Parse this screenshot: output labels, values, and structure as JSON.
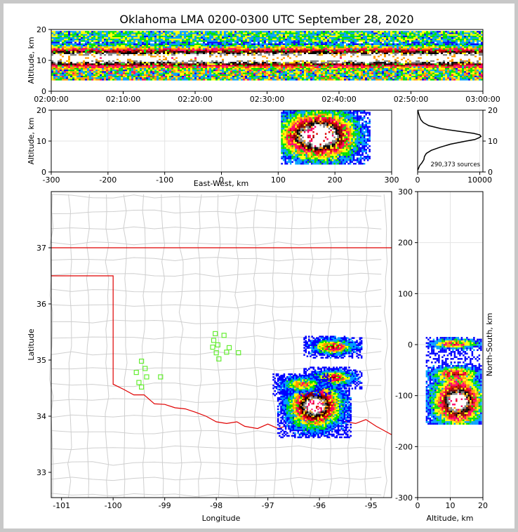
{
  "chart_data": {
    "title": "Oklahoma LMA 0200-0300 UTC September 28, 2020",
    "type": "heatmap",
    "colormap": [
      "#0000ff",
      "#00a0ff",
      "#00e000",
      "#ffff00",
      "#ff9900",
      "#ff0066",
      "#dd0000",
      "#800000",
      "#000000",
      "#808080",
      "#ffffff"
    ],
    "panels": {
      "time_height": {
        "ylabel": "Altitude, km",
        "xticks": [
          "02:00:00",
          "02:10:00",
          "02:20:00",
          "02:30:00",
          "02:40:00",
          "02:50:00",
          "03:00:00"
        ],
        "yticks": [
          0,
          10,
          20
        ],
        "ylim": [
          0,
          20
        ],
        "peak_altitude_km": 11
      },
      "ew_height": {
        "xlabel": "East-West, km",
        "ylabel": "Altitude, km",
        "xlim": [
          -300,
          300
        ],
        "ylim": [
          0,
          20
        ],
        "xticks": [
          -300,
          -200,
          -100,
          0,
          100,
          200,
          300
        ],
        "yticks": [
          0,
          10,
          20
        ],
        "storm_east_west_km": [
          105,
          260
        ],
        "core_east_west_km": 160,
        "core_altitude_km": 12
      },
      "altitude_histogram": {
        "xlim": [
          0,
          10500
        ],
        "ylim": [
          0,
          20
        ],
        "xticks": [
          0,
          10000
        ],
        "yticks": [
          0,
          10,
          20
        ],
        "annotation": "290,373 sources",
        "altitude": [
          0.5,
          2,
          3,
          4,
          5,
          6,
          7,
          8,
          9,
          10,
          10.5,
          11,
          11.5,
          12,
          12.5,
          13,
          14,
          15,
          16,
          17,
          18,
          19,
          20
        ],
        "counts": [
          0,
          300,
          700,
          1000,
          1100,
          1400,
          2200,
          3600,
          5300,
          7800,
          9200,
          9800,
          10200,
          10000,
          9000,
          7200,
          3800,
          1800,
          900,
          500,
          300,
          150,
          50
        ]
      },
      "plan_view": {
        "xlabel": "Longitude",
        "ylabel": "Latitude",
        "xlim": [
          -101.2,
          -94.6
        ],
        "ylim": [
          32.55,
          38
        ],
        "xticks": [
          -101,
          -100,
          -99,
          -98,
          -97,
          -96,
          -95
        ],
        "yticks": [
          33,
          34,
          35,
          36,
          37
        ],
        "stations": [
          [
            -99.45,
            34.98
          ],
          [
            -99.38,
            34.85
          ],
          [
            -99.55,
            34.78
          ],
          [
            -99.35,
            34.7
          ],
          [
            -99.08,
            34.7
          ],
          [
            -99.5,
            34.6
          ],
          [
            -99.45,
            34.52
          ],
          [
            -98.02,
            35.47
          ],
          [
            -97.85,
            35.44
          ],
          [
            -98.05,
            35.35
          ],
          [
            -97.97,
            35.27
          ],
          [
            -98.07,
            35.23
          ],
          [
            -97.75,
            35.22
          ],
          [
            -97.8,
            35.14
          ],
          [
            -97.57,
            35.13
          ],
          [
            -98.0,
            35.13
          ],
          [
            -97.95,
            35.02
          ]
        ],
        "storm_cells": [
          {
            "lon": -96.1,
            "lat": 34.2,
            "intensity": "core"
          },
          {
            "lon": -95.75,
            "lat": 34.7,
            "intensity": "moderate"
          },
          {
            "lon": -95.75,
            "lat": 35.25,
            "intensity": "moderate"
          },
          {
            "lon": -96.35,
            "lat": 34.58,
            "intensity": "light"
          }
        ]
      },
      "ns_height": {
        "xlabel": "Altitude, km",
        "ylabel": "North-South, km",
        "xlim": [
          0,
          20
        ],
        "ylim": [
          -300,
          300
        ],
        "xticks": [
          0,
          10,
          20
        ],
        "yticks": [
          -300,
          -200,
          -100,
          0,
          100,
          200,
          300
        ],
        "storm_north_south_km": [
          -155,
          15
        ],
        "core_north_south_km": -110,
        "core_altitude_km": 12
      }
    }
  }
}
